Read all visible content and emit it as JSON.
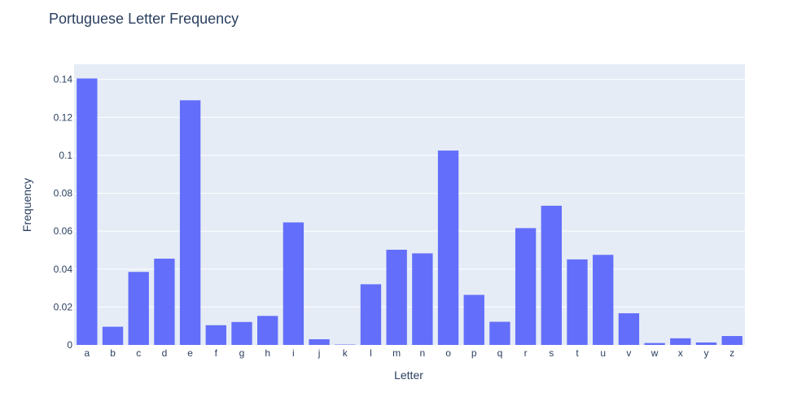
{
  "chart_data": {
    "type": "bar",
    "title": "Portuguese Letter Frequency",
    "xlabel": "Letter",
    "ylabel": "Frequency",
    "categories": [
      "a",
      "b",
      "c",
      "d",
      "e",
      "f",
      "g",
      "h",
      "i",
      "j",
      "k",
      "l",
      "m",
      "n",
      "o",
      "p",
      "q",
      "r",
      "s",
      "t",
      "u",
      "v",
      "w",
      "x",
      "y",
      "z"
    ],
    "values": [
      0.1405,
      0.0096,
      0.0385,
      0.0455,
      0.129,
      0.0104,
      0.0121,
      0.0153,
      0.0646,
      0.003,
      0.0002,
      0.032,
      0.0502,
      0.0483,
      0.1025,
      0.0264,
      0.0122,
      0.0616,
      0.0734,
      0.0451,
      0.0475,
      0.0167,
      0.001,
      0.0035,
      0.0013,
      0.0047
    ],
    "ylim": [
      0,
      0.148
    ],
    "yticks": [
      0,
      0.02,
      0.04,
      0.06,
      0.08,
      0.1,
      0.12,
      0.14
    ],
    "ytick_labels": [
      "0",
      "0.02",
      "0.04",
      "0.06",
      "0.08",
      "0.1",
      "0.12",
      "0.14"
    ],
    "grid": true,
    "colors": {
      "bar": "#636efa",
      "plot_bg": "#e5ecf6",
      "grid": "#ffffff",
      "text": "#2a3f5f"
    }
  }
}
